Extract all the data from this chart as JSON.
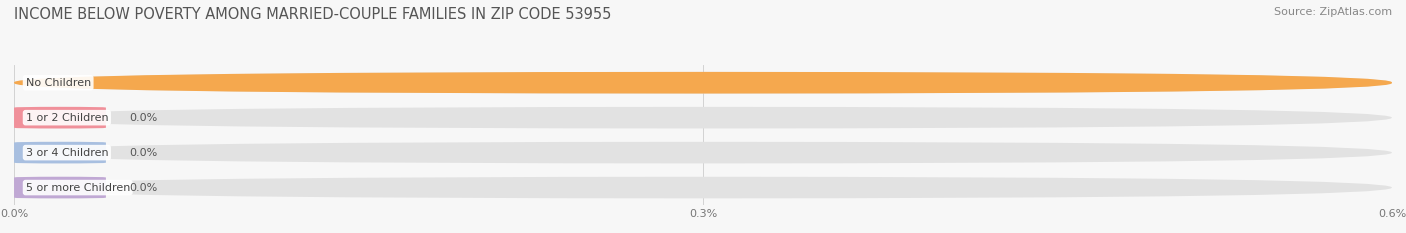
{
  "title": "INCOME BELOW POVERTY AMONG MARRIED-COUPLE FAMILIES IN ZIP CODE 53955",
  "source": "Source: ZipAtlas.com",
  "categories": [
    "No Children",
    "1 or 2 Children",
    "3 or 4 Children",
    "5 or more Children"
  ],
  "values": [
    0.6,
    0.0,
    0.0,
    0.0
  ],
  "bar_colors": [
    "#f5a84e",
    "#f0909a",
    "#a8bfe0",
    "#c0a8d4"
  ],
  "background_color": "#f7f7f7",
  "bar_bg_color": "#e2e2e2",
  "bar_bg_color2": "#ebebeb",
  "xlim_max": 0.6,
  "xticks": [
    0.0,
    0.3,
    0.6
  ],
  "xtick_labels": [
    "0.0%",
    "0.3%",
    "0.6%"
  ],
  "title_fontsize": 10.5,
  "source_fontsize": 8,
  "tick_fontsize": 8,
  "bar_label_fontsize": 8,
  "category_fontsize": 8,
  "value_label_color": "#555555",
  "category_label_color": "#444444",
  "grid_color": "#cccccc",
  "title_color": "#555555",
  "source_color": "#888888"
}
